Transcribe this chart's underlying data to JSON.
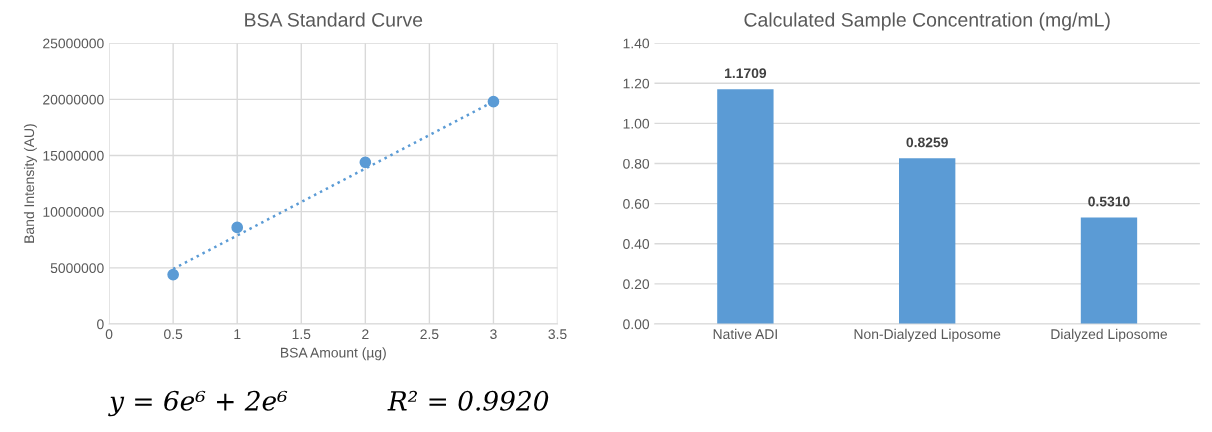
{
  "chart_data": [
    {
      "type": "scatter",
      "title": "BSA Standard Curve",
      "xlabel": "BSA Amount (µg)",
      "ylabel": "Band Intensity (AU)",
      "series": [
        {
          "type": "scatter",
          "color": "#5b9bd5",
          "x": [
            0.5,
            1,
            2,
            3
          ],
          "values": [
            4400000,
            8600000,
            14400000,
            19800000
          ],
          "marker": "circle"
        },
        {
          "type": "line",
          "color": "#5b9bd5",
          "x": [
            0.5,
            3
          ],
          "values": [
            4900000,
            19800000
          ],
          "line_style": "dotted",
          "marker": "none"
        }
      ],
      "xlim": [
        0,
        3.5
      ],
      "xticks": [
        0,
        0.5,
        1,
        1.5,
        2,
        2.5,
        3,
        3.5
      ],
      "ylim": [
        0,
        25000000
      ],
      "yticks": [
        0,
        5000000,
        10000000,
        15000000,
        20000000,
        25000000
      ],
      "grid": true,
      "annotations": [
        "y = 6e⁶ + 2e⁶",
        "R² = 0.9920"
      ]
    },
    {
      "type": "bar",
      "title": "Calculated Sample Concentration (mg/mL)",
      "categories": [
        "Native ADI",
        "Non-Dialyzed Liposome",
        "Dialyzed Liposome"
      ],
      "values": [
        1.1709,
        0.8259,
        0.531
      ],
      "value_labels": [
        "1.1709",
        "0.8259",
        "0.5310"
      ],
      "color": "#5b9bd5",
      "ylim": [
        0,
        1.4
      ],
      "yticks": [
        {
          "value": 0,
          "label": "0.00"
        },
        {
          "value": 0.2,
          "label": "0.20"
        },
        {
          "value": 0.4,
          "label": "0.40"
        },
        {
          "value": 0.6,
          "label": "0.60"
        },
        {
          "value": 0.8,
          "label": "0.80"
        },
        {
          "value": 1.0,
          "label": "1.00"
        },
        {
          "value": 1.2,
          "label": "1.20"
        },
        {
          "value": 1.4,
          "label": "1.40"
        }
      ],
      "grid": "y"
    }
  ]
}
